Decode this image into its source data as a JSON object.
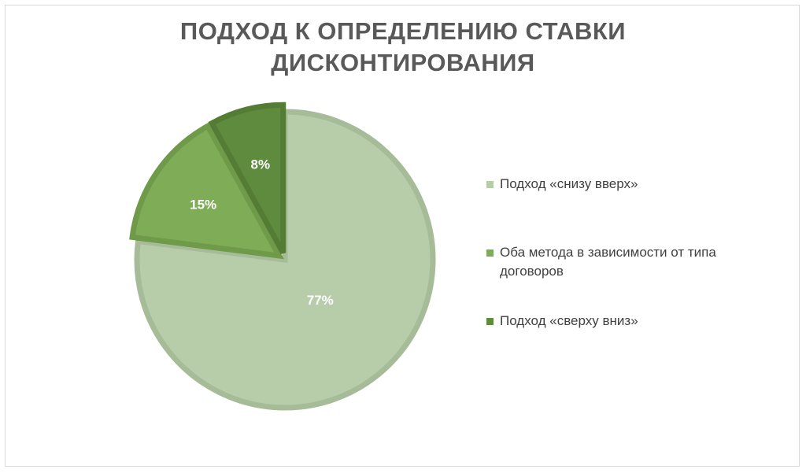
{
  "chart_data": {
    "type": "pie",
    "title_lines": [
      "ПОДХОД К ОПРЕДЕЛЕНИЮ СТАВКИ",
      "ДИСКОНТИРОВАНИЯ"
    ],
    "categories": [
      "Подход «снизу вверх»",
      "Оба метода в зависимости от типа договоров",
      "Подход «сверху вниз»"
    ],
    "values": [
      77,
      15,
      8
    ],
    "labels": [
      "77%",
      "15%",
      "8%"
    ],
    "colors": [
      "#b7cca9",
      "#7fac57",
      "#5e8b3d"
    ],
    "border_colors": [
      "#a6bb97",
      "#6f9a49",
      "#547c35"
    ],
    "exploded_slices": [
      1,
      2
    ],
    "legend_position": "right"
  }
}
